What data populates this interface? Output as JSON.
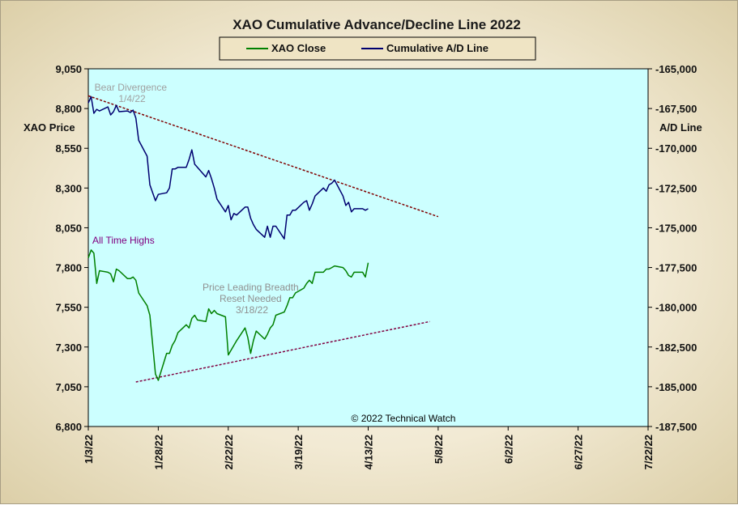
{
  "chart_data": {
    "type": "line",
    "title": "XAO Cumulative Advance/Decline Line 2022",
    "y_left_label": "XAO Price",
    "y_right_label": "A/D Line",
    "y_left_ticks": [
      "9,050",
      "8,800",
      "8,550",
      "8,300",
      "8,050",
      "7,800",
      "7,550",
      "7,300",
      "7,050",
      "6,800"
    ],
    "y_right_ticks": [
      "-165,000",
      "-167,500",
      "-170,000",
      "-172,500",
      "-175,000",
      "-177,500",
      "-180,000",
      "-182,500",
      "-185,000",
      "-187,500"
    ],
    "y_left_range": [
      6800,
      9050
    ],
    "y_right_range": [
      -187500,
      -165000
    ],
    "x_ticks": [
      "1/3/22",
      "1/28/22",
      "2/22/22",
      "3/19/22",
      "4/13/22",
      "5/8/22",
      "6/2/22",
      "6/27/22",
      "7/22/22"
    ],
    "x_range": [
      "2022-01-03",
      "2022-07-22"
    ],
    "series": [
      {
        "name": "XAO Close",
        "color": "#008000",
        "axis": "left",
        "x": [
          "2022-01-03",
          "2022-01-04",
          "2022-01-05",
          "2022-01-06",
          "2022-01-07",
          "2022-01-10",
          "2022-01-11",
          "2022-01-12",
          "2022-01-13",
          "2022-01-14",
          "2022-01-17",
          "2022-01-18",
          "2022-01-19",
          "2022-01-20",
          "2022-01-21",
          "2022-01-24",
          "2022-01-25",
          "2022-01-27",
          "2022-01-28",
          "2022-01-31",
          "2022-02-01",
          "2022-02-02",
          "2022-02-03",
          "2022-02-04",
          "2022-02-07",
          "2022-02-08",
          "2022-02-09",
          "2022-02-10",
          "2022-02-11",
          "2022-02-14",
          "2022-02-15",
          "2022-02-16",
          "2022-02-17",
          "2022-02-18",
          "2022-02-21",
          "2022-02-22",
          "2022-02-23",
          "2022-02-24",
          "2022-02-25",
          "2022-02-28",
          "2022-03-01",
          "2022-03-02",
          "2022-03-03",
          "2022-03-04",
          "2022-03-07",
          "2022-03-08",
          "2022-03-09",
          "2022-03-10",
          "2022-03-11",
          "2022-03-14",
          "2022-03-15",
          "2022-03-16",
          "2022-03-17",
          "2022-03-18",
          "2022-03-21",
          "2022-03-22",
          "2022-03-23",
          "2022-03-24",
          "2022-03-25",
          "2022-03-28",
          "2022-03-29",
          "2022-03-30",
          "2022-03-31",
          "2022-04-01",
          "2022-04-04",
          "2022-04-05",
          "2022-04-06",
          "2022-04-07",
          "2022-04-08",
          "2022-04-11",
          "2022-04-12",
          "2022-04-13"
        ],
        "values": [
          7860,
          7910,
          7890,
          7700,
          7780,
          7770,
          7760,
          7710,
          7790,
          7780,
          7730,
          7730,
          7740,
          7720,
          7640,
          7560,
          7500,
          7130,
          7090,
          7260,
          7260,
          7310,
          7340,
          7390,
          7440,
          7420,
          7480,
          7500,
          7470,
          7460,
          7540,
          7510,
          7530,
          7510,
          7490,
          7250,
          7280,
          7310,
          7340,
          7420,
          7360,
          7260,
          7340,
          7400,
          7350,
          7380,
          7420,
          7440,
          7500,
          7520,
          7560,
          7610,
          7610,
          7640,
          7670,
          7700,
          7720,
          7700,
          7770,
          7770,
          7790,
          7790,
          7800,
          7810,
          7800,
          7780,
          7750,
          7740,
          7770,
          7770,
          7740,
          7830
        ]
      },
      {
        "name": "Cumulative A/D Line",
        "color": "#000070",
        "axis": "right",
        "x": [
          "2022-01-03",
          "2022-01-04",
          "2022-01-05",
          "2022-01-06",
          "2022-01-07",
          "2022-01-10",
          "2022-01-11",
          "2022-01-12",
          "2022-01-13",
          "2022-01-14",
          "2022-01-17",
          "2022-01-18",
          "2022-01-19",
          "2022-01-20",
          "2022-01-21",
          "2022-01-24",
          "2022-01-25",
          "2022-01-27",
          "2022-01-28",
          "2022-01-31",
          "2022-02-01",
          "2022-02-02",
          "2022-02-03",
          "2022-02-04",
          "2022-02-07",
          "2022-02-08",
          "2022-02-09",
          "2022-02-10",
          "2022-02-11",
          "2022-02-14",
          "2022-02-15",
          "2022-02-16",
          "2022-02-17",
          "2022-02-18",
          "2022-02-21",
          "2022-02-22",
          "2022-02-23",
          "2022-02-24",
          "2022-02-25",
          "2022-02-28",
          "2022-03-01",
          "2022-03-02",
          "2022-03-03",
          "2022-03-04",
          "2022-03-07",
          "2022-03-08",
          "2022-03-09",
          "2022-03-10",
          "2022-03-11",
          "2022-03-14",
          "2022-03-15",
          "2022-03-16",
          "2022-03-17",
          "2022-03-18",
          "2022-03-21",
          "2022-03-22",
          "2022-03-23",
          "2022-03-24",
          "2022-03-25",
          "2022-03-28",
          "2022-03-29",
          "2022-03-30",
          "2022-03-31",
          "2022-04-01",
          "2022-04-04",
          "2022-04-05",
          "2022-04-06",
          "2022-04-07",
          "2022-04-08",
          "2022-04-11",
          "2022-04-12",
          "2022-04-13"
        ],
        "values": [
          -167150,
          -166750,
          -167800,
          -167550,
          -167650,
          -167400,
          -167900,
          -167700,
          -167300,
          -167700,
          -167650,
          -167750,
          -167600,
          -168100,
          -169500,
          -170500,
          -172300,
          -173300,
          -172900,
          -172800,
          -172500,
          -171300,
          -171300,
          -171200,
          -171200,
          -170700,
          -170100,
          -171000,
          -171200,
          -171800,
          -171400,
          -171900,
          -172500,
          -173200,
          -174000,
          -173600,
          -174500,
          -174100,
          -174200,
          -173700,
          -173700,
          -174400,
          -174800,
          -175100,
          -175600,
          -174900,
          -175600,
          -174900,
          -174900,
          -175700,
          -174200,
          -174200,
          -173900,
          -173900,
          -173400,
          -173300,
          -173900,
          -173500,
          -173000,
          -172500,
          -172700,
          -172300,
          -172200,
          -172000,
          -173000,
          -173600,
          -173400,
          -174000,
          -173800,
          -173800,
          -173900,
          -173800
        ]
      }
    ],
    "trendlines": [
      {
        "axis": "right",
        "from": [
          "2022-01-03",
          -166700
        ],
        "to": [
          "2022-05-08",
          -174300
        ],
        "color": "#800000"
      },
      {
        "axis": "left",
        "from": [
          "2022-01-20",
          7080
        ],
        "to": [
          "2022-05-05",
          7460
        ],
        "color": "#800040"
      }
    ],
    "annotations": [
      {
        "lines": [
          "Bear Divergence",
          "1/4/22"
        ],
        "color": "#a0a0a0"
      },
      {
        "lines": [
          "All Time Highs"
        ],
        "color": "#800080"
      },
      {
        "lines": [
          "Price Leading Breadth",
          "Reset Needed",
          "3/18/22"
        ],
        "color": "#909090"
      },
      {
        "lines": [
          "© 2022 Technical Watch"
        ],
        "color": "#000000"
      }
    ],
    "legend_position": "top-center",
    "plot_background": "#ccffff",
    "grid": false
  }
}
